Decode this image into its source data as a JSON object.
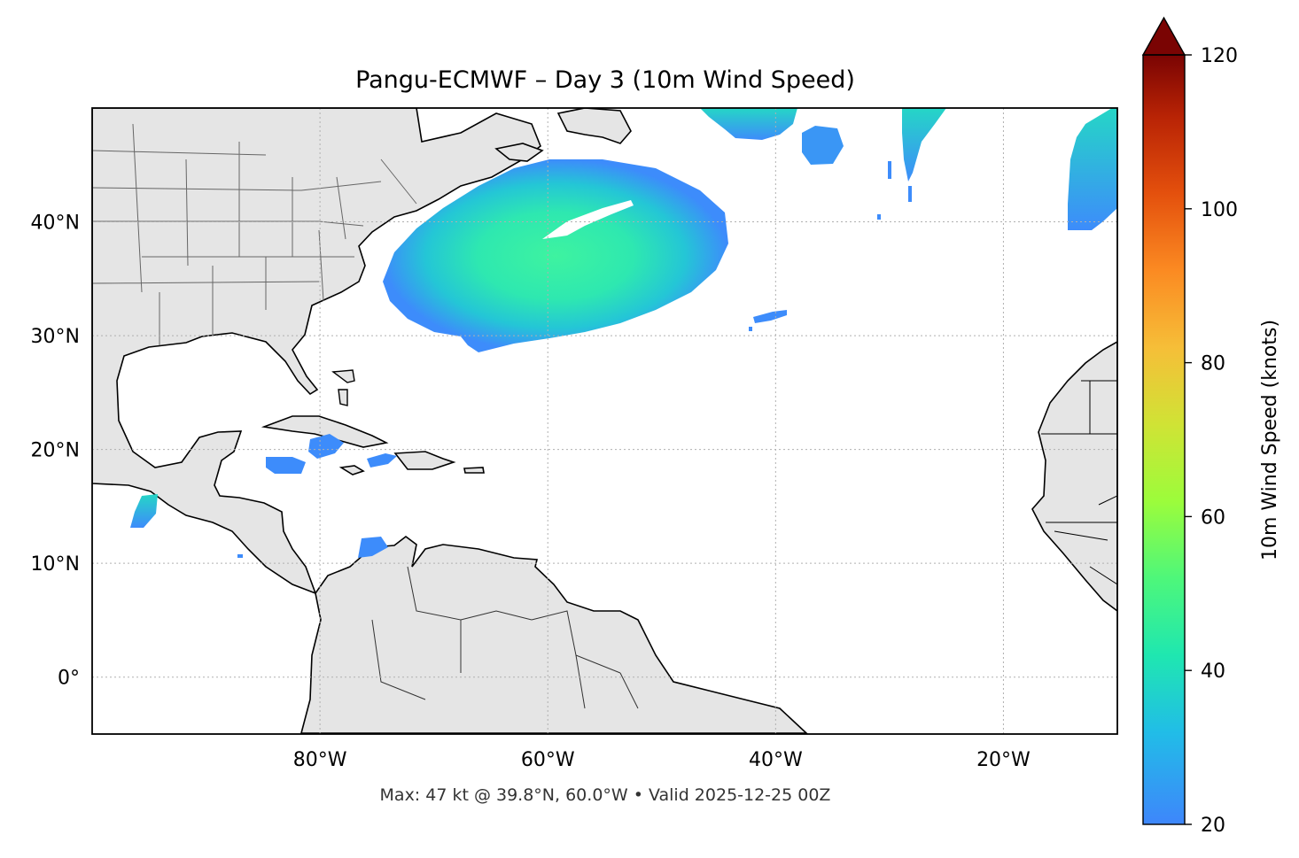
{
  "title": "Pangu-ECMWF – Day 3 (10m Wind Speed)",
  "footer": "Max: 47 kt @ 39.8°N, 60.0°W • Valid 2025-12-25 00Z",
  "map": {
    "lon_range": [
      -100,
      -10
    ],
    "lat_range": [
      -5,
      50
    ],
    "lon_ticks": [
      -80,
      -60,
      -40,
      -20
    ],
    "lat_ticks": [
      0,
      10,
      20,
      30,
      40
    ],
    "lon_tick_labels": [
      "80°W",
      "60°W",
      "40°W",
      "20°W"
    ],
    "lat_tick_labels": [
      "0°",
      "10°N",
      "20°N",
      "30°N",
      "40°N"
    ],
    "gridlines": true,
    "land_color": "#e5e5e5",
    "ocean_color": "#ffffff",
    "storm_max": {
      "value_kt": 47,
      "lat": 39.8,
      "lon": -60.0
    }
  },
  "colorbar": {
    "label": "10m Wind Speed (knots)",
    "range": [
      20,
      120
    ],
    "ticks": [
      20,
      40,
      60,
      80,
      100,
      120
    ],
    "tick_labels": [
      "20",
      "40",
      "60",
      "80",
      "100",
      "120"
    ],
    "extend": "max",
    "colormap": "turbo"
  }
}
